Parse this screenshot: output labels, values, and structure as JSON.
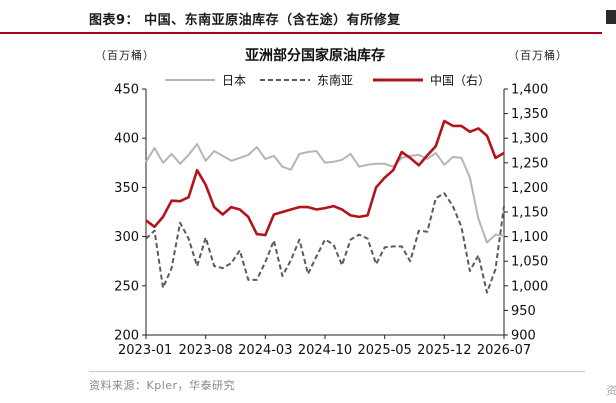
{
  "figure": {
    "title": "图表9：  中国、东南亚原油库存（含在途）有所修复",
    "source": "资料来源：Kpler，华泰研究",
    "right_edge_fragment": "资"
  },
  "chart_data": {
    "type": "line",
    "title": "亚洲部分国家原油库存",
    "y_unit_left": "（百万桶）",
    "y_unit_right": "（百万桶）",
    "x_tick_labels": [
      "2023-01",
      "2023-08",
      "2024-03",
      "2024-10",
      "2025-05",
      "2025-12",
      "2026-07"
    ],
    "x_range": [
      "2023-01",
      "2026-07"
    ],
    "ylim_left": [
      200,
      450
    ],
    "yticks_left": [
      200,
      250,
      300,
      350,
      400,
      450
    ],
    "ylim_right": [
      900,
      1400
    ],
    "yticks_right": [
      900,
      950,
      1000,
      1050,
      1100,
      1150,
      1200,
      1250,
      1300,
      1350,
      1400
    ],
    "yticks_right_labels": [
      "900",
      "950",
      "1,000",
      "1,050",
      "1,100",
      "1,150",
      "1,200",
      "1,250",
      "1,300",
      "1,350",
      "1,400"
    ],
    "legend_position": "top",
    "grid": false,
    "x": [
      "2023-01",
      "2023-02",
      "2023-03",
      "2023-04",
      "2023-05",
      "2023-06",
      "2023-07",
      "2023-08",
      "2023-09",
      "2023-10",
      "2023-11",
      "2023-12",
      "2024-01",
      "2024-02",
      "2024-03",
      "2024-04",
      "2024-05",
      "2024-06",
      "2024-07",
      "2024-08",
      "2024-09",
      "2024-10",
      "2024-11",
      "2024-12",
      "2025-01",
      "2025-02",
      "2025-03",
      "2025-04",
      "2025-05",
      "2025-06",
      "2025-07",
      "2025-08",
      "2025-09",
      "2025-10",
      "2025-11",
      "2025-12",
      "2026-01",
      "2026-02",
      "2026-03",
      "2026-04",
      "2026-05",
      "2026-06",
      "2026-07"
    ],
    "series": [
      {
        "name": "日本",
        "axis": "left",
        "color": "#b5b5b5",
        "dash": "solid",
        "values": [
          376,
          390,
          375,
          384,
          374,
          383,
          394,
          377,
          387,
          382,
          377,
          380,
          383,
          391,
          379,
          382,
          371,
          368,
          384,
          386,
          387,
          375,
          376,
          378,
          384,
          371,
          373,
          374,
          374,
          371,
          380,
          382,
          383,
          379,
          385,
          373,
          381,
          380,
          360,
          318,
          294,
          302,
          301
        ]
      },
      {
        "name": "东南亚",
        "axis": "left",
        "color": "#5a5a5a",
        "dash": "dashed",
        "values": [
          298,
          306,
          248,
          268,
          314,
          298,
          270,
          299,
          270,
          268,
          273,
          286,
          256,
          256,
          274,
          296,
          260,
          276,
          297,
          262,
          280,
          297,
          292,
          271,
          297,
          302,
          298,
          272,
          289,
          290,
          290,
          275,
          306,
          305,
          339,
          344,
          331,
          310,
          265,
          281,
          243,
          267,
          331
        ]
      },
      {
        "name": "中国（右）",
        "axis": "right",
        "color": "#b3131b",
        "dash": "solid",
        "values": [
          1133,
          1120,
          1140,
          1173,
          1172,
          1180,
          1235,
          1205,
          1160,
          1145,
          1160,
          1155,
          1140,
          1105,
          1103,
          1145,
          1150,
          1155,
          1160,
          1160,
          1155,
          1158,
          1162,
          1155,
          1143,
          1140,
          1143,
          1200,
          1220,
          1235,
          1272,
          1260,
          1245,
          1265,
          1284,
          1335,
          1325,
          1325,
          1313,
          1320,
          1305,
          1260,
          1270
        ]
      }
    ]
  }
}
